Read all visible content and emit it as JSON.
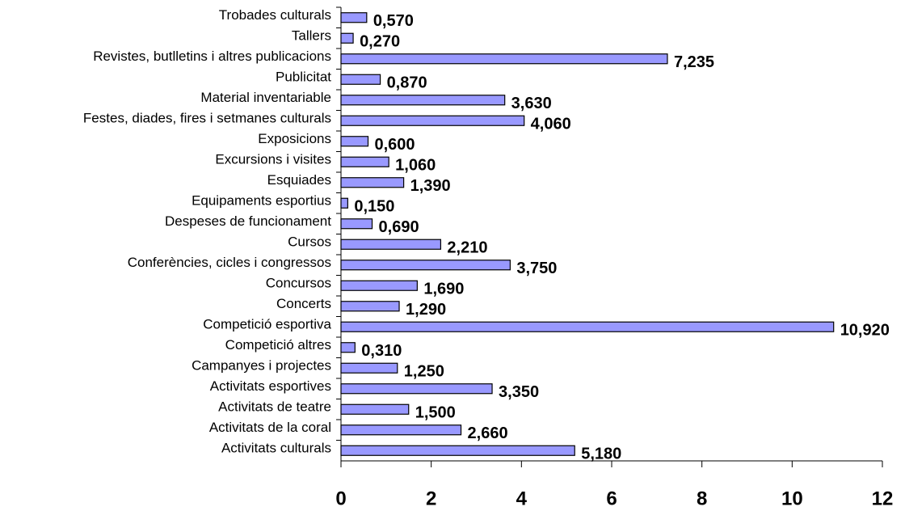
{
  "chart_data": {
    "type": "bar",
    "orientation": "horizontal",
    "categories": [
      "Activitats culturals",
      "Activitats de la coral",
      "Activitats de teatre",
      "Activitats esportives",
      "Campanyes i projectes",
      "Competició altres",
      "Competició esportiva",
      "Concerts",
      "Concursos",
      "Conferències, cicles i congressos",
      "Cursos",
      "Despeses de funcionament",
      "Equipaments esportius",
      "Esquiades",
      "Excursions i visites",
      "Exposicions",
      "Festes, diades, fires i setmanes culturals",
      "Material inventariable",
      "Publicitat",
      "Revistes, butlletins i altres publicacions",
      "Tallers",
      "Trobades culturals"
    ],
    "values": [
      5.18,
      2.66,
      1.5,
      3.35,
      1.25,
      0.31,
      10.92,
      1.29,
      1.69,
      3.75,
      2.21,
      0.69,
      0.15,
      1.39,
      1.06,
      0.6,
      4.06,
      3.63,
      0.87,
      7.235,
      0.27,
      0.57
    ],
    "value_labels": [
      "5,180",
      "2,660",
      "1,500",
      "3,350",
      "1,250",
      "0,310",
      "10,920",
      "1,290",
      "1,690",
      "3,750",
      "2,210",
      "0,690",
      "0,150",
      "1,390",
      "1,060",
      "0,600",
      "4,060",
      "3,630",
      "0,870",
      "7,235",
      "0,270",
      "0,570"
    ],
    "color": "#9999ff",
    "xlim": [
      0,
      12
    ],
    "xticks": [
      0,
      2,
      4,
      6,
      8,
      10,
      12
    ]
  }
}
